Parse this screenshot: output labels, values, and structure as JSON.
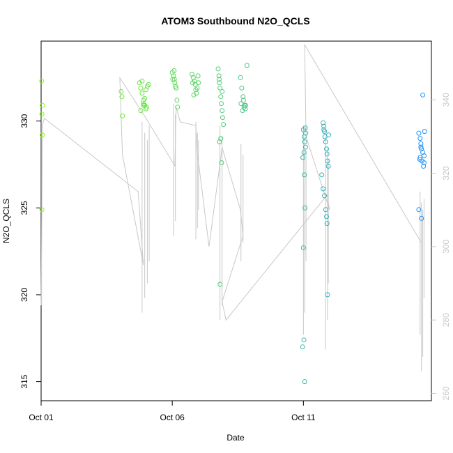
{
  "chart_data": {
    "type": "scatter",
    "title": "ATOM3 Southbound N2O_QCLS",
    "xlabel": "Date",
    "ylabel": "N2O_QCLS",
    "x_ticks": [
      "Oct 01",
      "Oct 06",
      "Oct 11"
    ],
    "y_ticks": [
      315,
      320,
      325,
      330
    ],
    "y2_ticks": [
      260,
      280,
      300,
      320,
      340
    ],
    "xlim": [
      0.0,
      14.88
    ],
    "ylim": [
      313.9,
      334.6
    ],
    "y2lim": [
      258,
      356
    ],
    "grid": false,
    "legend": "none",
    "colors": {
      "axis": "#000000",
      "secondary_axis": "#c8c8c8",
      "secondary_line": "#c8c8c8",
      "point_start": "#7fff00",
      "point_end": "#1e90ff"
    },
    "series": [
      {
        "kind": "scatter-circles",
        "axis": "left",
        "points": [
          [
            0.02,
            332.3
          ],
          [
            0.03,
            330.4
          ],
          [
            0.04,
            329.2
          ],
          [
            0.03,
            324.9
          ],
          [
            0.05,
            330.9
          ],
          [
            3.05,
            331.7
          ],
          [
            3.08,
            331.4
          ],
          [
            3.1,
            330.3
          ],
          [
            3.75,
            332.2
          ],
          [
            3.8,
            331.9
          ],
          [
            3.85,
            331.6
          ],
          [
            3.9,
            331.2
          ],
          [
            3.95,
            330.9
          ],
          [
            4.0,
            330.7
          ],
          [
            3.8,
            330.6
          ],
          [
            3.9,
            330.9
          ],
          [
            4.05,
            332.0
          ],
          [
            4.1,
            332.1
          ],
          [
            3.85,
            332.3
          ],
          [
            4.0,
            331.8
          ],
          [
            3.95,
            331.3
          ],
          [
            3.9,
            331.0
          ],
          [
            4.02,
            330.8
          ],
          [
            5.0,
            332.8
          ],
          [
            5.05,
            332.6
          ],
          [
            5.08,
            332.4
          ],
          [
            5.1,
            332.2
          ],
          [
            5.12,
            332.0
          ],
          [
            5.15,
            331.9
          ],
          [
            5.02,
            332.4
          ],
          [
            5.18,
            331.2
          ],
          [
            5.2,
            330.8
          ],
          [
            5.07,
            332.9
          ],
          [
            5.75,
            332.7
          ],
          [
            5.8,
            332.5
          ],
          [
            5.85,
            332.3
          ],
          [
            5.88,
            332.1
          ],
          [
            5.9,
            331.8
          ],
          [
            5.82,
            331.5
          ],
          [
            5.95,
            331.9
          ],
          [
            6.0,
            332.2
          ],
          [
            5.92,
            331.6
          ],
          [
            5.78,
            332.2
          ],
          [
            5.98,
            332.6
          ],
          [
            6.75,
            333.0
          ],
          [
            6.78,
            332.6
          ],
          [
            6.8,
            332.2
          ],
          [
            6.82,
            331.9
          ],
          [
            6.85,
            331.4
          ],
          [
            6.87,
            331.0
          ],
          [
            6.9,
            330.6
          ],
          [
            6.92,
            330.2
          ],
          [
            6.95,
            329.8
          ],
          [
            6.85,
            329.0
          ],
          [
            6.8,
            328.8
          ],
          [
            6.88,
            327.6
          ],
          [
            6.82,
            320.6
          ],
          [
            6.9,
            331.7
          ],
          [
            6.79,
            332.4
          ],
          [
            7.6,
            332.5
          ],
          [
            7.65,
            331.9
          ],
          [
            7.7,
            331.4
          ],
          [
            7.72,
            331.2
          ],
          [
            7.75,
            330.9
          ],
          [
            7.78,
            330.7
          ],
          [
            7.8,
            330.9
          ],
          [
            7.68,
            330.6
          ],
          [
            7.74,
            330.8
          ],
          [
            7.85,
            333.2
          ],
          [
            7.62,
            331.0
          ],
          [
            10.0,
            329.5
          ],
          [
            10.03,
            329.1
          ],
          [
            10.05,
            328.8
          ],
          [
            10.08,
            328.5
          ],
          [
            10.02,
            328.2
          ],
          [
            9.98,
            327.9
          ],
          [
            10.04,
            326.9
          ],
          [
            10.06,
            325.0
          ],
          [
            10.0,
            322.7
          ],
          [
            10.02,
            317.4
          ],
          [
            9.97,
            317.0
          ],
          [
            10.05,
            315.0
          ],
          [
            10.07,
            329.6
          ],
          [
            10.09,
            329.3
          ],
          [
            10.75,
            329.9
          ],
          [
            10.78,
            329.7
          ],
          [
            10.8,
            329.4
          ],
          [
            10.82,
            329.1
          ],
          [
            10.85,
            328.8
          ],
          [
            10.88,
            328.4
          ],
          [
            10.9,
            328.1
          ],
          [
            10.92,
            327.7
          ],
          [
            10.95,
            327.4
          ],
          [
            10.7,
            326.9
          ],
          [
            10.75,
            326.1
          ],
          [
            10.8,
            325.7
          ],
          [
            10.85,
            324.9
          ],
          [
            10.9,
            324.1
          ],
          [
            10.88,
            324.5
          ],
          [
            10.92,
            320.0
          ],
          [
            10.78,
            329.5
          ],
          [
            10.96,
            329.2
          ],
          [
            14.4,
            329.3
          ],
          [
            14.45,
            329.0
          ],
          [
            14.48,
            328.7
          ],
          [
            14.5,
            328.4
          ],
          [
            14.55,
            328.2
          ],
          [
            14.6,
            328.0
          ],
          [
            14.45,
            327.9
          ],
          [
            14.52,
            327.7
          ],
          [
            14.58,
            327.4
          ],
          [
            14.62,
            329.4
          ],
          [
            14.48,
            328.5
          ],
          [
            14.4,
            324.9
          ],
          [
            14.5,
            324.4
          ],
          [
            14.55,
            331.5
          ],
          [
            14.6,
            327.6
          ],
          [
            14.44,
            327.8
          ]
        ]
      },
      {
        "kind": "line",
        "axis": "right",
        "points": [
          [
            0.0,
            284
          ],
          [
            0.05,
            333
          ],
          [
            0.12,
            335
          ],
          [
            3.7,
            315
          ],
          [
            3.9,
            295
          ],
          [
            3.1,
            325
          ],
          [
            3.0,
            346
          ],
          [
            4.0,
            335
          ],
          [
            5.1,
            322
          ],
          [
            5.15,
            338
          ],
          [
            5.3,
            334
          ],
          [
            5.9,
            333
          ],
          [
            5.95,
            326
          ],
          [
            6.4,
            300
          ],
          [
            6.9,
            327
          ],
          [
            7.6,
            310
          ],
          [
            7.7,
            303
          ],
          [
            6.9,
            285
          ],
          [
            7.05,
            280
          ],
          [
            10.9,
            314
          ],
          [
            11.0,
            310
          ],
          [
            10.1,
            330
          ],
          [
            10.05,
            355
          ],
          [
            14.5,
            301
          ]
        ]
      }
    ]
  }
}
